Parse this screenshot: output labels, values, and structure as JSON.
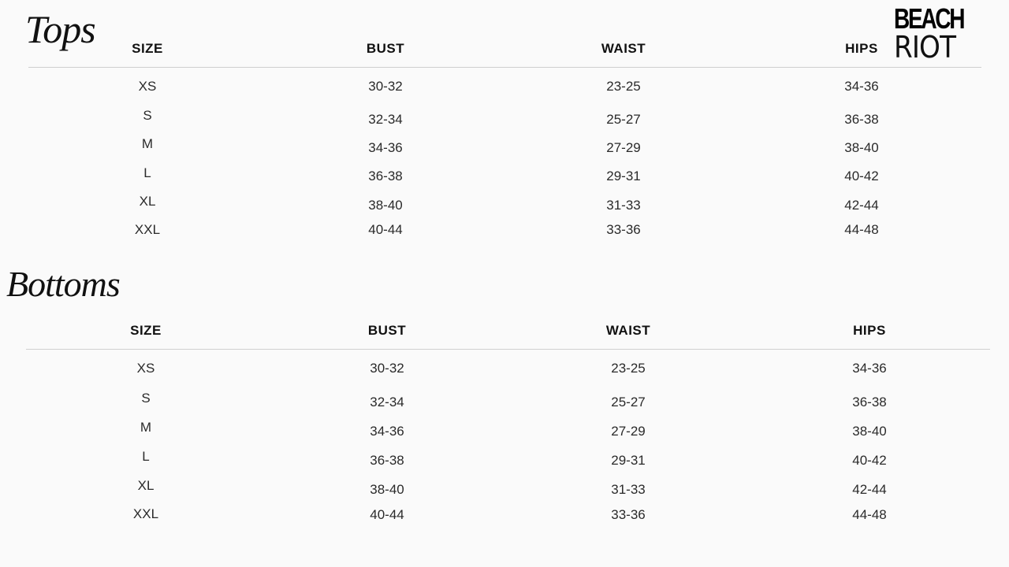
{
  "brand": {
    "logo_bold": "BEACH",
    "logo_light": "RIOT"
  },
  "columns": [
    "SIZE",
    "BUST",
    "WAIST",
    "HIPS"
  ],
  "tables": [
    {
      "title": "Tops",
      "rows": [
        [
          "XS",
          "30-32",
          "23-25",
          "34-36"
        ],
        [
          "S",
          "32-34",
          "25-27",
          "36-38"
        ],
        [
          "M",
          "34-36",
          "27-29",
          "38-40"
        ],
        [
          "L",
          "36-38",
          "29-31",
          "40-42"
        ],
        [
          "XL",
          "38-40",
          "31-33",
          "42-44"
        ],
        [
          "XXL",
          "40-44",
          "33-36",
          "44-48"
        ]
      ]
    },
    {
      "title": "Bottoms",
      "rows": [
        [
          "XS",
          "30-32",
          "23-25",
          "34-36"
        ],
        [
          "S",
          "32-34",
          "25-27",
          "36-38"
        ],
        [
          "M",
          "34-36",
          "27-29",
          "38-40"
        ],
        [
          "L",
          "36-38",
          "29-31",
          "40-42"
        ],
        [
          "XL",
          "38-40",
          "31-33",
          "42-44"
        ],
        [
          "XXL",
          "40-44",
          "33-36",
          "44-48"
        ]
      ]
    }
  ]
}
